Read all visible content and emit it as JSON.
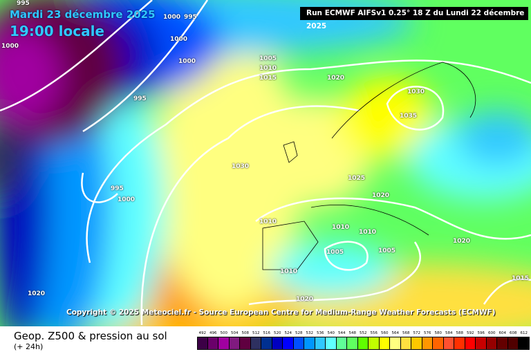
{
  "header": {
    "date": "Mardi 23 décembre 2025",
    "local_time": "19:00 locale",
    "run": "Run ECMWF AIFSv1 0.25° 18 Z du Lundi 22 décembre 2025"
  },
  "copyright": "Copyright © 2025 Meteociel.fr - Source European Centre for Medium-Range Weather Forecasts (ECMWF)",
  "legend": {
    "title": "Geop. Z500 & pression au sol",
    "subtitle": "(+ 24h)",
    "levels": [
      "492",
      "496",
      "500",
      "504",
      "508",
      "512",
      "516",
      "520",
      "524",
      "528",
      "532",
      "536",
      "540",
      "544",
      "548",
      "552",
      "556",
      "560",
      "564",
      "568",
      "572",
      "576",
      "580",
      "584",
      "588",
      "592",
      "596",
      "600",
      "604",
      "608",
      "612"
    ],
    "colors": [
      "#3c0046",
      "#6a006a",
      "#a000a0",
      "#801a80",
      "#600040",
      "#2e3060",
      "#003090",
      "#0000c0",
      "#0000ff",
      "#0050ff",
      "#0096ff",
      "#30c8ff",
      "#60ffff",
      "#60ff98",
      "#60ff60",
      "#60ff00",
      "#c0ff00",
      "#ffff00",
      "#ffff80",
      "#ffe040",
      "#ffc800",
      "#ff9600",
      "#ff6400",
      "#ff5030",
      "#ff3000",
      "#ff0000",
      "#c80000",
      "#960000",
      "#640000",
      "#500000",
      "#000000"
    ]
  },
  "isobar_labels": [
    "995",
    "1000",
    "995",
    "1000",
    "1000",
    "1000",
    "995",
    "1005",
    "1010",
    "1015",
    "1020",
    "1030",
    "1035",
    "1030",
    "995",
    "1000",
    "1025",
    "1020",
    "1010",
    "1010",
    "1010",
    "1005",
    "1005",
    "1020",
    "1010",
    "1020",
    "1015",
    "1020"
  ]
}
